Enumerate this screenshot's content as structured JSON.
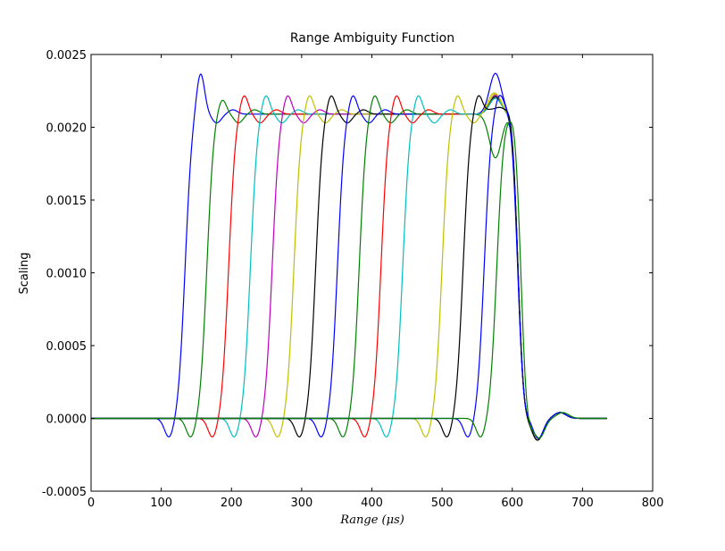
{
  "chart_data": {
    "type": "line",
    "title": "Range Ambiguity Function",
    "xlabel": "Range (μs)",
    "ylabel": "Scaling",
    "xlim": [
      0,
      800
    ],
    "ylim": [
      -0.0005,
      0.0025
    ],
    "xticks": [
      "0",
      "100",
      "200",
      "300",
      "400",
      "500",
      "600",
      "700",
      "800"
    ],
    "yticks": [
      "-0.0005",
      "0.0000",
      "0.0005",
      "0.0010",
      "0.0015",
      "0.0020",
      "0.0025"
    ],
    "grid": false,
    "legend": "none",
    "x_range": [
      0,
      735
    ],
    "plateau_level": 0.00209,
    "peak_level": 0.00222,
    "series": [
      {
        "color": "#0000ff",
        "rise_center": 134,
        "fall_center": 608,
        "overshoot": 0.00028,
        "final_peak": 0.00237
      },
      {
        "color": "#008000",
        "rise_center": 165,
        "fall_center": 608,
        "overshoot": 0.0001,
        "final_peak": 0.00179
      },
      {
        "color": "#ff0000",
        "rise_center": 196,
        "fall_center": 608,
        "overshoot": 0.00013,
        "final_peak": 0.00222
      },
      {
        "color": "#00bfbf",
        "rise_center": 227,
        "fall_center": 608,
        "overshoot": 0.00013,
        "final_peak": 0.00222
      },
      {
        "color": "#bf00bf",
        "rise_center": 258,
        "fall_center": 608,
        "overshoot": 0.00013,
        "final_peak": 0.00222
      },
      {
        "color": "#bfbf00",
        "rise_center": 289,
        "fall_center": 608,
        "overshoot": 0.00013,
        "final_peak": 0.00223
      },
      {
        "color": "#000000",
        "rise_center": 320,
        "fall_center": 608,
        "overshoot": 0.00013,
        "final_peak": 0.00221
      },
      {
        "color": "#0000ff",
        "rise_center": 351,
        "fall_center": 608,
        "overshoot": 0.00013,
        "final_peak": 0.0022
      },
      {
        "color": "#008000",
        "rise_center": 382,
        "fall_center": 608,
        "overshoot": 0.00013,
        "final_peak": 0.0022
      },
      {
        "color": "#ff0000",
        "rise_center": 413,
        "fall_center": 608,
        "overshoot": 0.00013,
        "final_peak": 0.0022
      },
      {
        "color": "#00bfbf",
        "rise_center": 444,
        "fall_center": 608,
        "overshoot": 0.00013,
        "final_peak": 0.0022
      },
      {
        "color": "#bfbf00",
        "rise_center": 500,
        "fall_center": 608,
        "overshoot": 0.00013,
        "final_peak": 0.00222
      },
      {
        "color": "#000000",
        "rise_center": 530,
        "fall_center": 608,
        "overshoot": 0.00013,
        "final_peak": 0.00219
      },
      {
        "color": "#0000ff",
        "rise_center": 560,
        "fall_center": 608,
        "overshoot": 0.0,
        "final_peak": 0.00237
      },
      {
        "color": "#008000",
        "rise_center": 578,
        "fall_center": 612,
        "overshoot": 0.0,
        "final_peak": 0.00179
      }
    ]
  }
}
